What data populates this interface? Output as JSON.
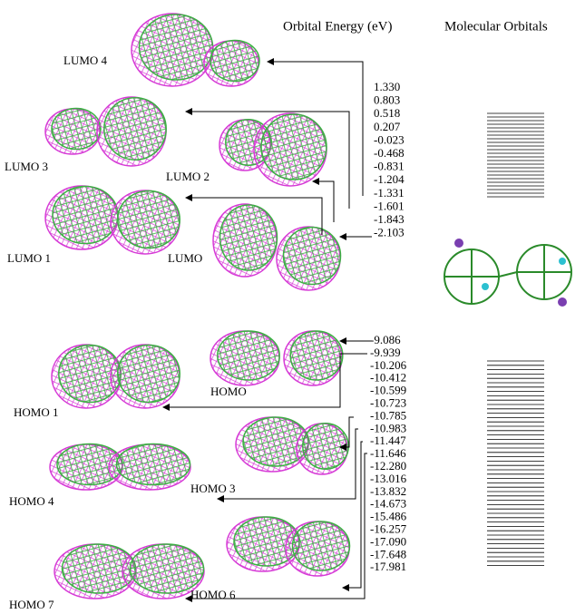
{
  "headings": {
    "energy": "Orbital Energy (eV)",
    "orbitals": "Molecular Orbitals"
  },
  "orbital_labels": [
    "LUMO 4",
    "LUMO 3",
    "LUMO 2",
    "LUMO 1",
    "LUMO",
    "HOMO",
    "HOMO 1",
    "HOMO 3",
    "HOMO 4",
    "HOMO 6",
    "HOMO 7"
  ],
  "unoccupied_energies": [
    "1.330",
    "0.803",
    "0.518",
    "0.207",
    "-0.023",
    "-0.468",
    "-0.831",
    "-1.204",
    "-1.331",
    "-1.601",
    "-1.843",
    "-2.103"
  ],
  "occupied_energies": [
    "-9.086",
    "-9.939",
    "-10.206",
    "-10.412",
    "-10.599",
    "-10.723",
    "-10.785",
    "-10.983",
    "-11.447",
    "-11.646",
    "-12.280",
    "-13.016",
    "-13.832",
    "-14.673",
    "-15.486",
    "-16.257",
    "-17.090",
    "-17.648",
    "-17.981"
  ]
}
